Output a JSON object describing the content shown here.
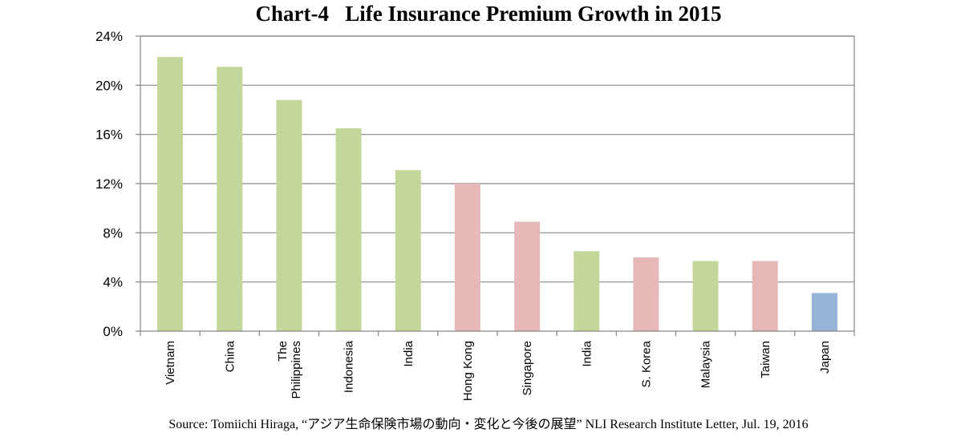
{
  "chart_data": {
    "type": "bar",
    "title": "Chart-4   Life Insurance Premium Growth in 2015",
    "xlabel": "",
    "ylabel": "",
    "ylim": [
      0,
      24
    ],
    "y_ticks": [
      "0%",
      "4%",
      "8%",
      "12%",
      "16%",
      "20%",
      "24%"
    ],
    "y_tick_values": [
      0,
      4,
      8,
      12,
      16,
      20,
      24
    ],
    "grid": true,
    "categories": [
      [
        "Vietnam"
      ],
      [
        "China"
      ],
      [
        "The",
        "Philippines"
      ],
      [
        "Indonesia"
      ],
      [
        "India"
      ],
      [
        "Hong Kong"
      ],
      [
        "Singapore"
      ],
      [
        "India"
      ],
      [
        "S. Korea"
      ],
      [
        "Malaysia"
      ],
      [
        "Taiwan"
      ],
      [
        "Japan"
      ]
    ],
    "values": [
      22.3,
      21.5,
      18.8,
      16.5,
      13.1,
      12.0,
      8.9,
      6.5,
      6.0,
      5.7,
      5.7,
      3.1
    ],
    "colors": [
      "#c4d79b",
      "#c4d79b",
      "#c4d79b",
      "#c4d79b",
      "#c4d79b",
      "#e6b9b8",
      "#e6b9b8",
      "#c4d79b",
      "#e6b9b8",
      "#c4d79b",
      "#e6b9b8",
      "#95b3d7"
    ]
  },
  "source": "Source: Tomiichi Hiraga, “アジア生命保険市場の動向・変化と今後の展望” NLI  Research Institute Letter, Jul. 19, 2016"
}
